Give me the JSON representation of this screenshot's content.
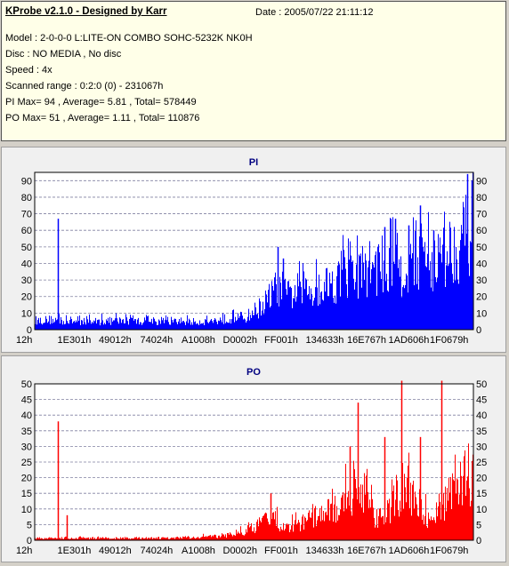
{
  "info": {
    "title": "KProbe v2.1.0 - Designed by Karr",
    "date": "Date : 2005/07/22 21:11:12",
    "model": "Model : 2-0-0-0 L:LITE-ON COMBO SOHC-5232K NK0H",
    "disc": "Disc : NO MEDIA , No disc",
    "speed": "Speed : 4x",
    "scanned_range": "Scanned range : 0:2:0 (0) - 231067h",
    "pi_stats": "PI Max= 94 , Average= 5.81 , Total= 578449",
    "po_stats": "PO Max= 51 , Average= 1.11 , Total= 110876"
  },
  "colors": {
    "pi": "#0000ff",
    "po": "#ff0000",
    "title": "#000080",
    "panel_bg": "#f0f0f0"
  },
  "chart_data": [
    {
      "type": "bar",
      "title": "PI",
      "x_tick_labels": [
        "12h",
        "1E301h",
        "49012h",
        "74024h",
        "A1008h",
        "D0002h",
        "FF001h",
        "134633h",
        "16E767h",
        "1AD606h",
        "1F0679h"
      ],
      "x_range": [
        0,
        231067
      ],
      "ylim": [
        0,
        95
      ],
      "y_ticks": [
        0,
        10,
        20,
        30,
        40,
        50,
        60,
        70,
        80,
        90
      ],
      "grid": true,
      "series": [
        {
          "color": "#0000ff",
          "envelope": [
            [
              0,
              8
            ],
            [
              10000,
              9
            ],
            [
              16000,
              7
            ],
            [
              19000,
              8
            ],
            [
              23000,
              7
            ],
            [
              46000,
              8
            ],
            [
              70000,
              7
            ],
            [
              85000,
              7
            ],
            [
              95000,
              8
            ],
            [
              105000,
              11
            ],
            [
              111000,
              11
            ],
            [
              120000,
              22
            ],
            [
              124000,
              30
            ],
            [
              128000,
              40
            ],
            [
              133000,
              30
            ],
            [
              138000,
              35
            ],
            [
              145000,
              36
            ],
            [
              152000,
              40
            ],
            [
              160000,
              45
            ],
            [
              168000,
              48
            ],
            [
              176000,
              56
            ],
            [
              184000,
              58
            ],
            [
              190000,
              60
            ],
            [
              196000,
              52
            ],
            [
              201000,
              68
            ],
            [
              208000,
              62
            ],
            [
              214000,
              64
            ],
            [
              220000,
              74
            ],
            [
              226000,
              84
            ],
            [
              231067,
              92
            ]
          ],
          "spikes": [
            [
              12000,
              67
            ],
            [
              128000,
              50
            ],
            [
              131000,
              43
            ],
            [
              184000,
              62
            ],
            [
              190000,
              67
            ],
            [
              197000,
              63
            ],
            [
              203000,
              75
            ],
            [
              210000,
              60
            ],
            [
              228000,
              94
            ],
            [
              230000,
              90
            ]
          ]
        }
      ]
    },
    {
      "type": "bar",
      "title": "PO",
      "x_tick_labels": [
        "12h",
        "1E301h",
        "49012h",
        "74024h",
        "A1008h",
        "D0002h",
        "FF001h",
        "134633h",
        "16E767h",
        "1AD606h",
        "1F0679h"
      ],
      "x_range": [
        0,
        231067
      ],
      "ylim": [
        0,
        50
      ],
      "y_ticks": [
        0,
        5,
        10,
        15,
        20,
        25,
        30,
        35,
        40,
        45,
        50
      ],
      "grid": true,
      "series": [
        {
          "color": "#ff0000",
          "envelope": [
            [
              0,
              1
            ],
            [
              30000,
              1
            ],
            [
              70000,
              1
            ],
            [
              100000,
              2
            ],
            [
              110000,
              4
            ],
            [
              120000,
              8
            ],
            [
              126000,
              10
            ],
            [
              130000,
              6
            ],
            [
              140000,
              8
            ],
            [
              150000,
              12
            ],
            [
              160000,
              15
            ],
            [
              165000,
              22
            ],
            [
              175000,
              18
            ],
            [
              180000,
              10
            ],
            [
              186000,
              14
            ],
            [
              193000,
              22
            ],
            [
              200000,
              22
            ],
            [
              207000,
              10
            ],
            [
              214000,
              14
            ],
            [
              221000,
              28
            ],
            [
              226000,
              30
            ],
            [
              231067,
              28
            ]
          ],
          "spikes": [
            [
              12000,
              38
            ],
            [
              17000,
              8
            ],
            [
              124000,
              15
            ],
            [
              166000,
              30
            ],
            [
              170000,
              44
            ],
            [
              184000,
              33
            ],
            [
              193000,
              51
            ],
            [
              203000,
              33
            ],
            [
              214000,
              51
            ]
          ]
        }
      ]
    }
  ]
}
